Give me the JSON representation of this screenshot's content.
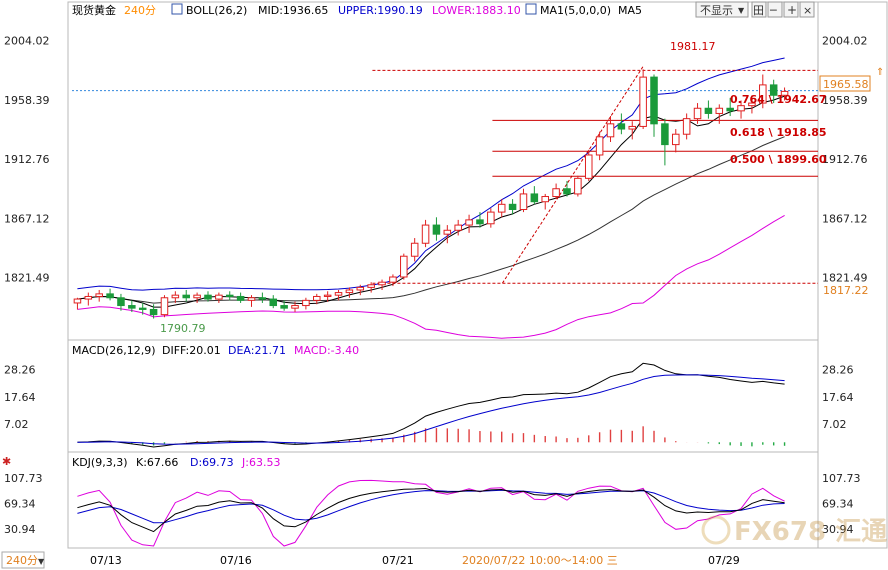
{
  "header": {
    "instrument": "现货黄金",
    "period": "240分",
    "boll": "BOLL(26,2)",
    "mid": "MID:1936.65",
    "upper": "UPPER:1990.19",
    "lower": "LOWER:1883.10",
    "ma": "MA1(5,0,0,0)",
    "ma5": "MA5",
    "dropdown": "不显示",
    "tb1": "田",
    "tb2": "─",
    "tb3": "+",
    "tb4": "×"
  },
  "macd_header": {
    "title": "MACD(26,12,9)",
    "diff": "DIFF:20.01",
    "dea": "DEA:21.71",
    "macd": "MACD:-3.40"
  },
  "kdj_header": {
    "title": "KDJ(9,3,3)",
    "k": "K:67.66",
    "d": "D:69.73",
    "j": "J:63.53"
  },
  "annotations": {
    "high": "1981.17",
    "low": "1790.79",
    "fib1": "0.764 \\ 1942.67",
    "fib2": "0.618 \\ 1918.85",
    "fib3": "0.500 \\ 1899.60",
    "current": "1965.58",
    "base": "1817.22"
  },
  "footer": {
    "period_btn": "240分",
    "dates": [
      "07/13",
      "07/16",
      "07/21",
      "07/29"
    ],
    "cursor_time": "2020/07/22 10:00～14:00 三"
  },
  "watermark": "FX678 汇通网",
  "chart_data": {
    "type": "candlestick",
    "price_axis": {
      "ticks": [
        2004.02,
        1958.39,
        1912.76,
        1867.12,
        1821.49
      ],
      "range": [
        1775,
        2020
      ]
    },
    "macd_axis": {
      "ticks": [
        28.26,
        17.64,
        7.02
      ],
      "range": [
        -3,
        32
      ]
    },
    "kdj_axis": {
      "ticks": [
        107.73,
        69.34,
        30.94
      ],
      "range": [
        5,
        120
      ]
    },
    "candles": [
      [
        1802,
        1806,
        1797,
        1805
      ],
      [
        1805,
        1810,
        1800,
        1807
      ],
      [
        1807,
        1812,
        1803,
        1809
      ],
      [
        1809,
        1813,
        1804,
        1806
      ],
      [
        1806,
        1809,
        1796,
        1800
      ],
      [
        1800,
        1804,
        1795,
        1798
      ],
      [
        1798,
        1802,
        1793,
        1797
      ],
      [
        1797,
        1801,
        1790,
        1793
      ],
      [
        1793,
        1808,
        1791,
        1806
      ],
      [
        1806,
        1811,
        1802,
        1808
      ],
      [
        1808,
        1812,
        1803,
        1806
      ],
      [
        1806,
        1810,
        1802,
        1808
      ],
      [
        1808,
        1811,
        1803,
        1805
      ],
      [
        1805,
        1810,
        1802,
        1808
      ],
      [
        1808,
        1811,
        1804,
        1807
      ],
      [
        1807,
        1810,
        1802,
        1804
      ],
      [
        1804,
        1808,
        1799,
        1806
      ],
      [
        1806,
        1810,
        1802,
        1805
      ],
      [
        1805,
        1808,
        1798,
        1800
      ],
      [
        1800,
        1804,
        1796,
        1798
      ],
      [
        1798,
        1803,
        1795,
        1800
      ],
      [
        1800,
        1806,
        1797,
        1804
      ],
      [
        1804,
        1809,
        1801,
        1807
      ],
      [
        1807,
        1811,
        1803,
        1808
      ],
      [
        1808,
        1812,
        1804,
        1810
      ],
      [
        1810,
        1814,
        1806,
        1812
      ],
      [
        1812,
        1816,
        1808,
        1814
      ],
      [
        1814,
        1818,
        1810,
        1816
      ],
      [
        1816,
        1820,
        1812,
        1818
      ],
      [
        1818,
        1824,
        1815,
        1822
      ],
      [
        1822,
        1840,
        1820,
        1838
      ],
      [
        1838,
        1852,
        1834,
        1848
      ],
      [
        1848,
        1866,
        1845,
        1862
      ],
      [
        1862,
        1868,
        1850,
        1855
      ],
      [
        1855,
        1862,
        1848,
        1858
      ],
      [
        1858,
        1866,
        1854,
        1862
      ],
      [
        1862,
        1870,
        1856,
        1866
      ],
      [
        1866,
        1872,
        1860,
        1863
      ],
      [
        1863,
        1875,
        1860,
        1872
      ],
      [
        1872,
        1882,
        1868,
        1878
      ],
      [
        1878,
        1882,
        1870,
        1874
      ],
      [
        1874,
        1890,
        1872,
        1886
      ],
      [
        1886,
        1892,
        1878,
        1880
      ],
      [
        1880,
        1886,
        1874,
        1884
      ],
      [
        1884,
        1894,
        1882,
        1890
      ],
      [
        1890,
        1896,
        1884,
        1886
      ],
      [
        1886,
        1900,
        1884,
        1898
      ],
      [
        1898,
        1920,
        1896,
        1916
      ],
      [
        1916,
        1934,
        1912,
        1930
      ],
      [
        1930,
        1946,
        1926,
        1940
      ],
      [
        1940,
        1948,
        1932,
        1936
      ],
      [
        1936,
        1942,
        1928,
        1938
      ],
      [
        1938,
        1982,
        1936,
        1976
      ],
      [
        1976,
        1978,
        1930,
        1940
      ],
      [
        1940,
        1944,
        1908,
        1924
      ],
      [
        1924,
        1936,
        1918,
        1932
      ],
      [
        1932,
        1948,
        1928,
        1944
      ],
      [
        1944,
        1956,
        1940,
        1952
      ],
      [
        1952,
        1958,
        1944,
        1948
      ],
      [
        1948,
        1955,
        1940,
        1952
      ],
      [
        1952,
        1960,
        1946,
        1950
      ],
      [
        1950,
        1958,
        1944,
        1954
      ],
      [
        1954,
        1962,
        1948,
        1956
      ],
      [
        1956,
        1978,
        1952,
        1970
      ],
      [
        1970,
        1974,
        1956,
        1962
      ],
      [
        1962,
        1968,
        1958,
        1965
      ]
    ],
    "series": [
      {
        "name": "MID",
        "color": "#000000"
      },
      {
        "name": "UPPER",
        "color": "#0000cc"
      },
      {
        "name": "LOWER",
        "color": "#dd00dd"
      },
      {
        "name": "MA5",
        "color": "#000000"
      },
      {
        "name": "DIFF",
        "color": "#000000"
      },
      {
        "name": "DEA",
        "color": "#0000cc"
      },
      {
        "name": "MACD",
        "color": "#dd00dd"
      },
      {
        "name": "K",
        "color": "#000000"
      },
      {
        "name": "D",
        "color": "#0000cc"
      },
      {
        "name": "J",
        "color": "#dd00dd"
      }
    ],
    "fib_levels": [
      1981.17,
      1942.67,
      1918.85,
      1899.6,
      1817.22
    ],
    "current_price": 1965.58
  }
}
